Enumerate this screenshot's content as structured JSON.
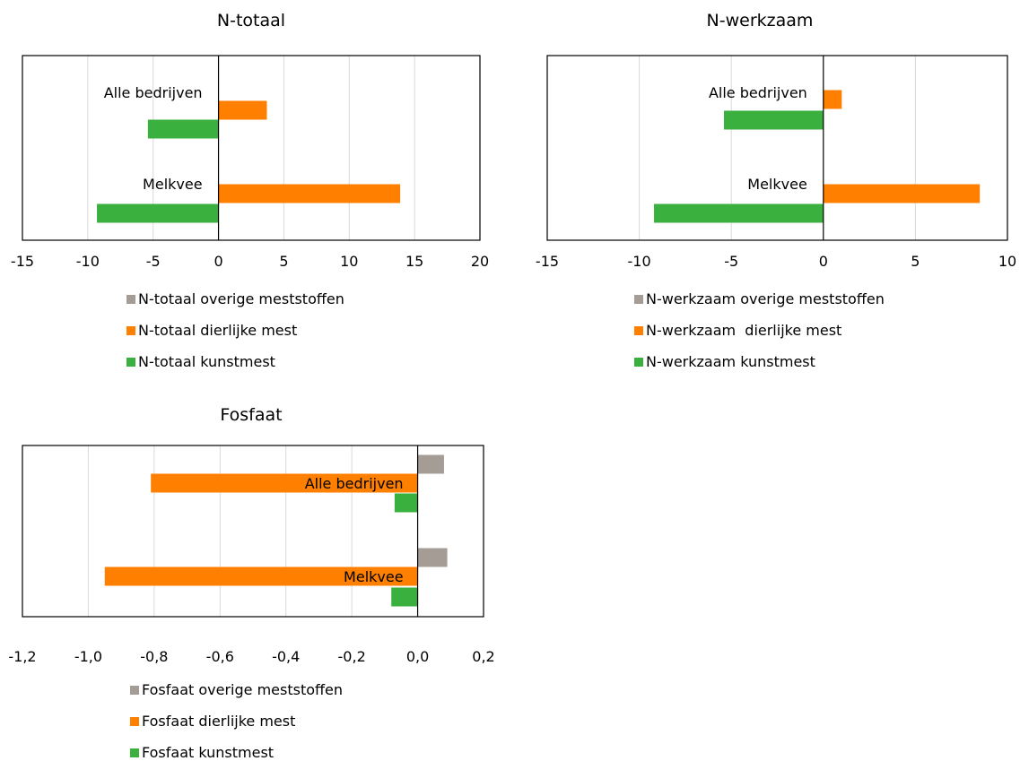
{
  "colors": {
    "overige": "#a59d95",
    "dierlijke": "#ff7f00",
    "kunstmest": "#3ab03e",
    "grid": "#d9d9d9",
    "axis": "#000000"
  },
  "chart_data": [
    {
      "type": "bar",
      "orientation": "horizontal",
      "title": "N-totaal",
      "categories": [
        "Alle bedrijven",
        "Melkvee"
      ],
      "xlim": [
        -15,
        20
      ],
      "tick_labels": [
        "-15",
        "-10",
        "-5",
        "0",
        "5",
        "10",
        "15",
        "20"
      ],
      "grid": true,
      "legend_position": "bottom",
      "series": [
        {
          "name": "N-totaal overige meststoffen",
          "color_key": "overige",
          "values": [
            0,
            0
          ]
        },
        {
          "name": "N-totaal dierlijke mest",
          "color_key": "dierlijke",
          "values": [
            3.7,
            13.9
          ]
        },
        {
          "name": "N-totaal kunstmest",
          "color_key": "kunstmest",
          "values": [
            -5.4,
            -9.3
          ]
        }
      ]
    },
    {
      "type": "bar",
      "orientation": "horizontal",
      "title": "N-werkzaam",
      "categories": [
        "Alle bedrijven",
        "Melkvee"
      ],
      "xlim": [
        -15,
        10
      ],
      "tick_labels": [
        "-15",
        "-10",
        "-5",
        "0",
        "5",
        "10"
      ],
      "grid": true,
      "legend_position": "bottom",
      "series": [
        {
          "name": "N-werkzaam overige meststoffen",
          "color_key": "overige",
          "values": [
            0,
            0
          ]
        },
        {
          "name": "N-werkzaam  dierlijke mest",
          "color_key": "dierlijke",
          "values": [
            1.0,
            8.5
          ]
        },
        {
          "name": "N-werkzaam kunstmest",
          "color_key": "kunstmest",
          "values": [
            -5.4,
            -9.2
          ]
        }
      ]
    },
    {
      "type": "bar",
      "orientation": "horizontal",
      "title": "Fosfaat",
      "categories": [
        "Alle bedrijven",
        "Melkvee"
      ],
      "xlim": [
        -1.2,
        0.2
      ],
      "tick_labels": [
        "-1,2",
        "-1,0",
        "-0,8",
        "-0,6",
        "-0,4",
        "-0,2",
        "0,0",
        "0,2"
      ],
      "grid": true,
      "legend_position": "bottom",
      "series": [
        {
          "name": "Fosfaat overige meststoffen",
          "color_key": "overige",
          "values": [
            0.08,
            0.09
          ]
        },
        {
          "name": "Fosfaat dierlijke mest",
          "color_key": "dierlijke",
          "values": [
            -0.81,
            -0.95
          ]
        },
        {
          "name": "Fosfaat kunstmest",
          "color_key": "kunstmest",
          "values": [
            -0.07,
            -0.08
          ]
        }
      ]
    }
  ]
}
